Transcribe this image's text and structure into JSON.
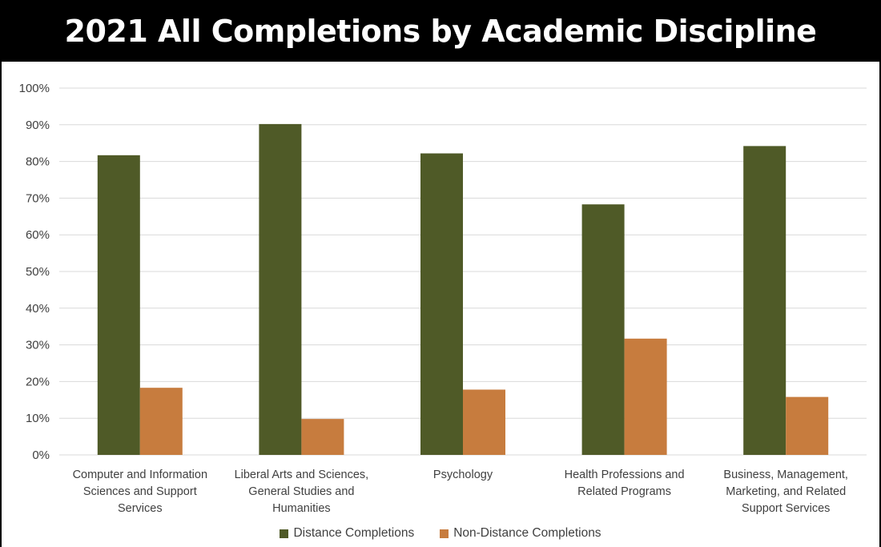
{
  "colors": {
    "title_bg": "#000000",
    "title_text": "#ffffff",
    "distance": "#4f5a27",
    "non_distance": "#c77c3e",
    "grid": "#d9d9d9",
    "axis_text": "#404040"
  },
  "chart_data": {
    "type": "bar",
    "title": "2021 All Completions by Academic Discipline",
    "categories": [
      [
        "Computer and Information",
        "Sciences and Support",
        "Services"
      ],
      [
        "Liberal Arts and Sciences,",
        "General Studies and",
        "Humanities"
      ],
      [
        "Psychology"
      ],
      [
        "Health Professions and",
        "Related Programs"
      ],
      [
        "Business, Management,",
        "Marketing, and Related",
        "Support Services"
      ]
    ],
    "series": [
      {
        "name": "Distance Completions",
        "color": "#4f5a27",
        "values": [
          81.7,
          90.2,
          82.2,
          68.3,
          84.2
        ]
      },
      {
        "name": "Non-Distance Completions",
        "color": "#c77c3e",
        "values": [
          18.3,
          9.8,
          17.8,
          31.7,
          15.8
        ]
      }
    ],
    "ylim": [
      0,
      100
    ],
    "yticks": [
      "0%",
      "10%",
      "20%",
      "30%",
      "40%",
      "50%",
      "60%",
      "70%",
      "80%",
      "90%",
      "100%"
    ],
    "grid": true,
    "legend_position": "bottom"
  }
}
